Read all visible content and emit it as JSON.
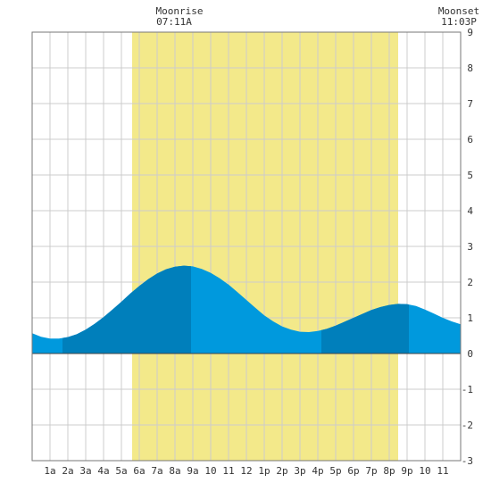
{
  "header": {
    "moonrise_title": "Moonrise",
    "moonrise_time": "07:11A",
    "moonset_title": "Moonset",
    "moonset_time": "11:03P"
  },
  "colors": {
    "daylight": "#f3e98a",
    "tide_light": "#0099dd",
    "tide_dark": "#007fbb",
    "grid": "#cccccc",
    "border": "#777777",
    "zero_line": "#444444"
  },
  "chart_data": {
    "type": "area",
    "xlim": [
      0,
      24
    ],
    "ylim": [
      -3,
      9
    ],
    "x_tick_labels": [
      "1a",
      "2a",
      "3a",
      "4a",
      "5a",
      "6a",
      "7a",
      "8a",
      "9a",
      "10",
      "11",
      "12",
      "1p",
      "2p",
      "3p",
      "4p",
      "5p",
      "6p",
      "7p",
      "8p",
      "9p",
      "10",
      "11"
    ],
    "y_tick_labels": [
      "9",
      "8",
      "7",
      "6",
      "5",
      "4",
      "3",
      "2",
      "1",
      "0",
      "-1",
      "-2",
      "-3"
    ],
    "daylight_window_hours": [
      5.6,
      20.5
    ],
    "dark_band_hours": [
      [
        1.7,
        8.9
      ],
      [
        16.2,
        21.1
      ]
    ],
    "tide_height": {
      "hours": [
        0,
        0.5,
        1,
        1.5,
        2,
        2.5,
        3,
        3.5,
        4,
        4.5,
        5,
        5.5,
        6,
        6.5,
        7,
        7.5,
        8,
        8.5,
        9,
        9.5,
        10,
        10.5,
        11,
        11.5,
        12,
        12.5,
        13,
        13.5,
        14,
        14.5,
        15,
        15.5,
        16,
        16.5,
        17,
        17.5,
        18,
        18.5,
        19,
        19.5,
        20,
        20.5,
        21,
        21.5,
        22,
        22.5,
        23,
        23.5,
        24
      ],
      "values": [
        0.57,
        0.47,
        0.42,
        0.42,
        0.46,
        0.54,
        0.67,
        0.83,
        1.02,
        1.23,
        1.45,
        1.68,
        1.89,
        2.08,
        2.24,
        2.36,
        2.43,
        2.46,
        2.44,
        2.37,
        2.26,
        2.11,
        1.93,
        1.72,
        1.5,
        1.28,
        1.07,
        0.9,
        0.76,
        0.67,
        0.61,
        0.6,
        0.63,
        0.69,
        0.78,
        0.89,
        1.0,
        1.11,
        1.22,
        1.3,
        1.36,
        1.39,
        1.38,
        1.33,
        1.23,
        1.12,
        1.0,
        0.9,
        0.82
      ]
    }
  }
}
